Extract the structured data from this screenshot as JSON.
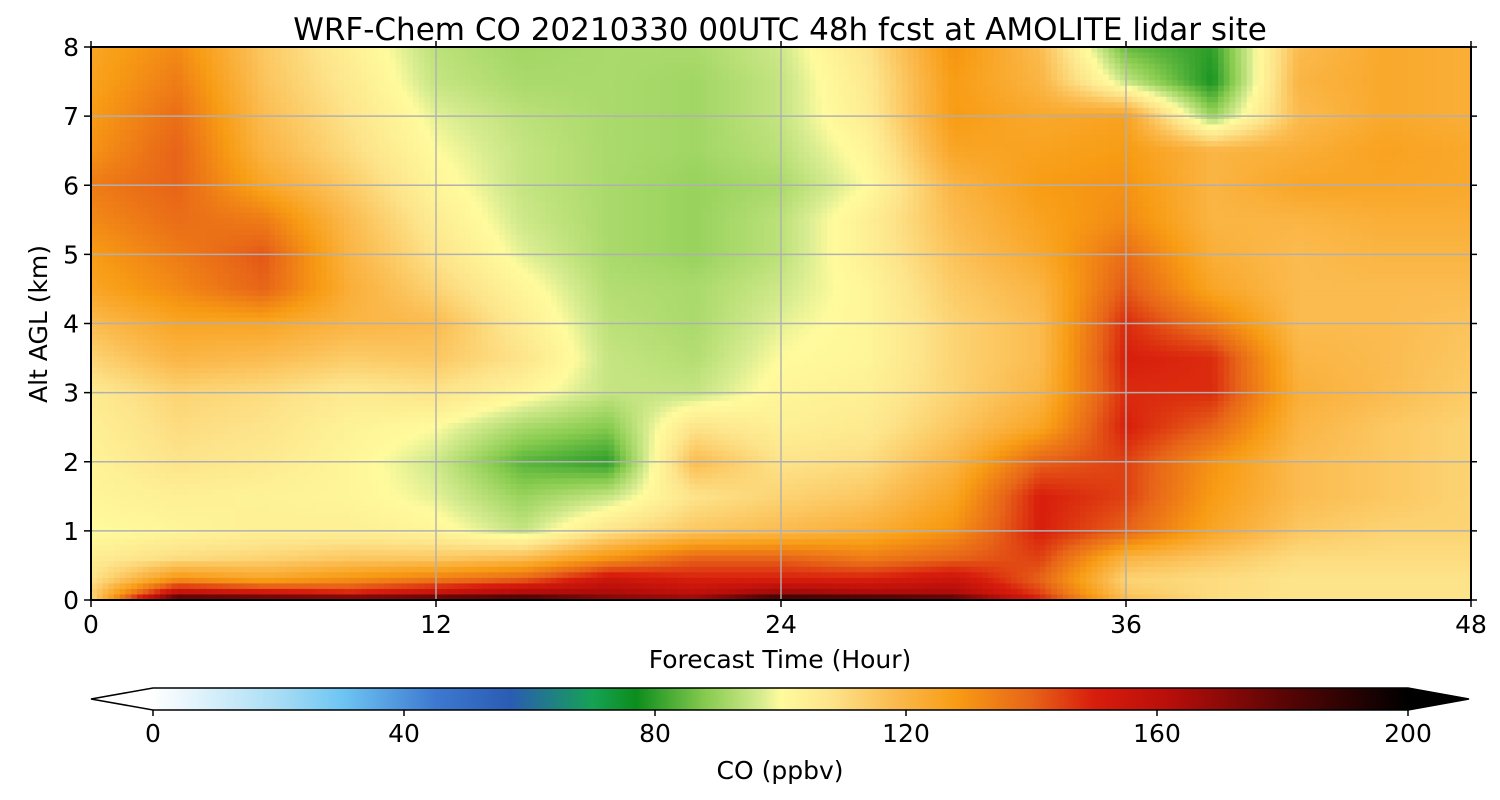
{
  "chart_data": {
    "type": "heatmap",
    "title": "WRF-Chem CO  20210330 00UTC 48h fcst at AMOLITE lidar site",
    "xlabel": "Forecast Time (Hour)",
    "ylabel": "Alt AGL (km)",
    "xlim": [
      0,
      48
    ],
    "ylim": [
      0,
      8
    ],
    "xticks": [
      "0",
      "12",
      "24",
      "36",
      "48"
    ],
    "yticks": [
      "0",
      "1",
      "2",
      "3",
      "4",
      "5",
      "6",
      "7",
      "8"
    ],
    "grid": true,
    "z_units": "ppbv",
    "x_hours": [
      0,
      3,
      6,
      9,
      12,
      15,
      18,
      21,
      24,
      27,
      30,
      33,
      36,
      39,
      42,
      45,
      48
    ],
    "y_km": [
      0,
      0.1,
      0.3,
      0.6,
      1,
      1.5,
      2,
      2.5,
      3,
      3.5,
      4,
      4.5,
      5,
      5.5,
      6,
      6.5,
      7,
      7.5,
      8
    ],
    "co_ppbv": [
      [
        110,
        190,
        188,
        185,
        188,
        192,
        175,
        170,
        195,
        192,
        185,
        150,
        118,
        110,
        108,
        108,
        108
      ],
      [
        112,
        160,
        155,
        150,
        158,
        165,
        165,
        160,
        168,
        165,
        165,
        145,
        115,
        110,
        108,
        108,
        108
      ],
      [
        108,
        130,
        125,
        130,
        135,
        140,
        155,
        150,
        150,
        150,
        155,
        140,
        112,
        110,
        108,
        108,
        108
      ],
      [
        105,
        110,
        112,
        115,
        115,
        118,
        130,
        140,
        140,
        135,
        140,
        145,
        120,
        115,
        110,
        110,
        110
      ],
      [
        100,
        102,
        104,
        104,
        102,
        95,
        108,
        115,
        118,
        122,
        130,
        150,
        140,
        125,
        115,
        112,
        112
      ],
      [
        102,
        104,
        103,
        102,
        98,
        90,
        95,
        108,
        112,
        115,
        125,
        150,
        145,
        128,
        118,
        115,
        112
      ],
      [
        103,
        108,
        106,
        102,
        96,
        84,
        80,
        118,
        108,
        110,
        120,
        140,
        145,
        130,
        118,
        115,
        112
      ],
      [
        104,
        110,
        108,
        103,
        100,
        92,
        88,
        108,
        104,
        106,
        115,
        125,
        150,
        140,
        120,
        115,
        112
      ],
      [
        106,
        112,
        110,
        106,
        108,
        102,
        95,
        95,
        102,
        104,
        112,
        120,
        148,
        148,
        122,
        118,
        114
      ],
      [
        112,
        120,
        118,
        114,
        115,
        108,
        95,
        93,
        100,
        102,
        112,
        118,
        150,
        148,
        120,
        118,
        115
      ],
      [
        118,
        125,
        125,
        120,
        118,
        105,
        94,
        92,
        98,
        102,
        112,
        118,
        148,
        135,
        118,
        118,
        116
      ],
      [
        125,
        132,
        140,
        122,
        112,
        102,
        93,
        92,
        96,
        102,
        114,
        120,
        142,
        125,
        118,
        118,
        118
      ],
      [
        128,
        135,
        142,
        120,
        108,
        98,
        92,
        90,
        94,
        104,
        116,
        124,
        138,
        122,
        118,
        120,
        120
      ],
      [
        132,
        138,
        135,
        118,
        105,
        96,
        92,
        90,
        94,
        104,
        118,
        126,
        132,
        120,
        120,
        122,
        122
      ],
      [
        135,
        140,
        125,
        114,
        102,
        95,
        92,
        90,
        92,
        100,
        120,
        128,
        130,
        120,
        125,
        125,
        124
      ],
      [
        130,
        140,
        120,
        110,
        100,
        95,
        92,
        91,
        94,
        102,
        125,
        126,
        128,
        120,
        122,
        126,
        124
      ],
      [
        128,
        138,
        118,
        108,
        98,
        94,
        92,
        91,
        95,
        105,
        128,
        124,
        126,
        90,
        118,
        124,
        122
      ],
      [
        126,
        135,
        116,
        106,
        95,
        92,
        92,
        91,
        95,
        106,
        128,
        120,
        95,
        78,
        120,
        124,
        122
      ],
      [
        125,
        132,
        115,
        104,
        94,
        91,
        92,
        92,
        96,
        108,
        130,
        118,
        85,
        80,
        118,
        124,
        122
      ]
    ]
  },
  "colorbar": {
    "label": "CO  (ppbv)",
    "min": 0,
    "max": 200,
    "ticks": [
      "0",
      "40",
      "80",
      "120",
      "160",
      "200"
    ],
    "extend": "both",
    "color_stops": [
      {
        "v": 0,
        "c": "#ffffff"
      },
      {
        "v": 20,
        "c": "#a8ddf5"
      },
      {
        "v": 30,
        "c": "#6ec6f3"
      },
      {
        "v": 45,
        "c": "#3d79d0"
      },
      {
        "v": 57,
        "c": "#2a5cb3"
      },
      {
        "v": 70,
        "c": "#15a255"
      },
      {
        "v": 77,
        "c": "#0c8d1c"
      },
      {
        "v": 88,
        "c": "#86cb4e"
      },
      {
        "v": 97,
        "c": "#d7ec90"
      },
      {
        "v": 100,
        "c": "#fffb9d"
      },
      {
        "v": 108,
        "c": "#fde48b"
      },
      {
        "v": 118,
        "c": "#fbbb4f"
      },
      {
        "v": 128,
        "c": "#f89c14"
      },
      {
        "v": 140,
        "c": "#e76418"
      },
      {
        "v": 150,
        "c": "#d81d0c"
      },
      {
        "v": 162,
        "c": "#b80e0a"
      },
      {
        "v": 180,
        "c": "#5a0505"
      },
      {
        "v": 200,
        "c": "#000000"
      }
    ]
  }
}
